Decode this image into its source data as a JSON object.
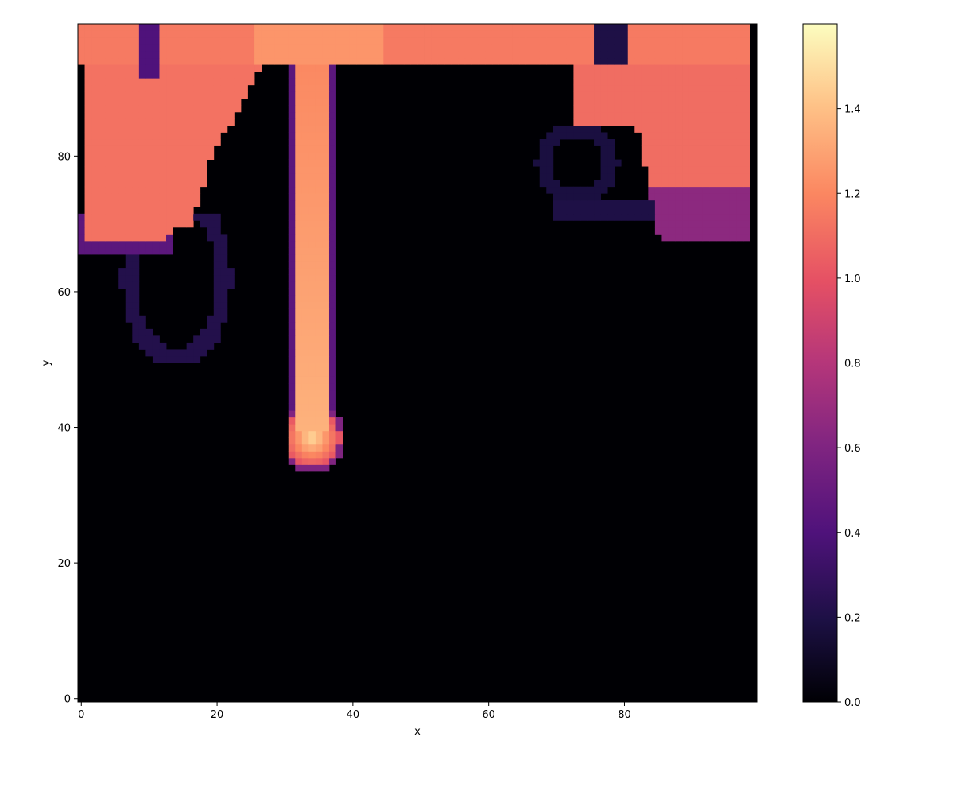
{
  "chart_data": {
    "type": "heatmap",
    "title": "",
    "xlabel": "x",
    "ylabel": "y",
    "xlim": [
      0,
      99
    ],
    "ylim": [
      0,
      99
    ],
    "x_ticks": [
      0,
      20,
      40,
      60,
      80
    ],
    "y_ticks": [
      0,
      20,
      40,
      60,
      80
    ],
    "colormap": "magma",
    "colorbar": {
      "range": [
        0.0,
        1.6
      ],
      "ticks": [
        "0.0",
        "0.2",
        "0.4",
        "0.6",
        "0.8",
        "1.0",
        "1.2",
        "1.4"
      ]
    },
    "grid": false,
    "description_of_field": {
      "background_value": 0.0,
      "top_band": {
        "y_range": [
          94,
          99
        ],
        "x_range": [
          0,
          98
        ],
        "value": 1.15
      },
      "left_lobe": {
        "x_range": [
          0,
          25
        ],
        "y_range": [
          68,
          99
        ],
        "value": 1.15
      },
      "right_lobe": {
        "x_range": [
          80,
          98
        ],
        "y_range": [
          68,
          99
        ],
        "value": 1.1
      },
      "plume_stem": {
        "x_range": [
          32,
          36
        ],
        "y_range": [
          40,
          96
        ],
        "value": 1.25
      },
      "plume_head": {
        "center": [
          34,
          38
        ],
        "radius": 4,
        "peak_value": 1.45
      },
      "left_faint_loop": {
        "center": [
          14,
          62
        ],
        "value": 0.25
      },
      "right_faint_swirl": {
        "center": [
          72,
          80
        ],
        "value": 0.2
      }
    }
  }
}
